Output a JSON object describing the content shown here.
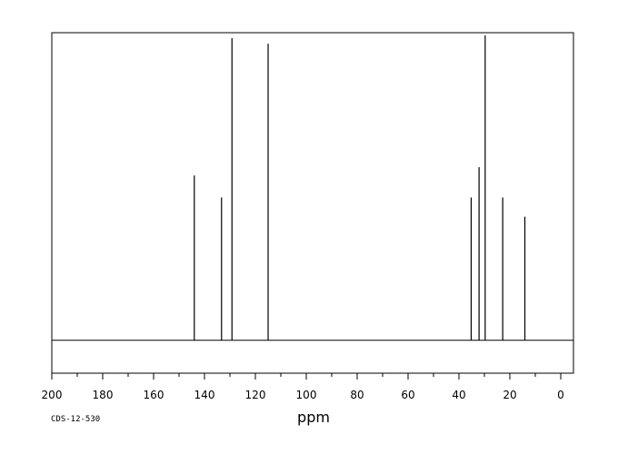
{
  "chart_data": {
    "type": "line",
    "title": "",
    "xlabel": "ppm",
    "ylabel": "",
    "xlim": [
      200,
      -5
    ],
    "x_axis_reversed": true,
    "ylim": [
      -0.12,
      1.12
    ],
    "grid": false,
    "legend": "none",
    "x_ticks": [
      200,
      180,
      160,
      140,
      120,
      100,
      80,
      60,
      40,
      20,
      0
    ],
    "x_tick_labels": [
      "200",
      "180",
      "160",
      "140",
      "120",
      "100",
      "80",
      "60",
      "40",
      "20",
      "0"
    ],
    "series": [
      {
        "peaks": [
          {
            "x": 144.0,
            "y": 0.6
          },
          {
            "x": 133.3,
            "y": 0.52
          },
          {
            "x": 129.2,
            "y": 1.1
          },
          {
            "x": 115.0,
            "y": 1.08
          },
          {
            "x": 35.2,
            "y": 0.52
          },
          {
            "x": 32.1,
            "y": 0.63
          },
          {
            "x": 29.7,
            "y": 1.11
          },
          {
            "x": 22.8,
            "y": 0.52
          },
          {
            "x": 14.1,
            "y": 0.45
          }
        ]
      }
    ]
  },
  "footer": {
    "code": "CDS-12-530"
  },
  "colors": {
    "line": "#000000",
    "background": "#ffffff"
  }
}
